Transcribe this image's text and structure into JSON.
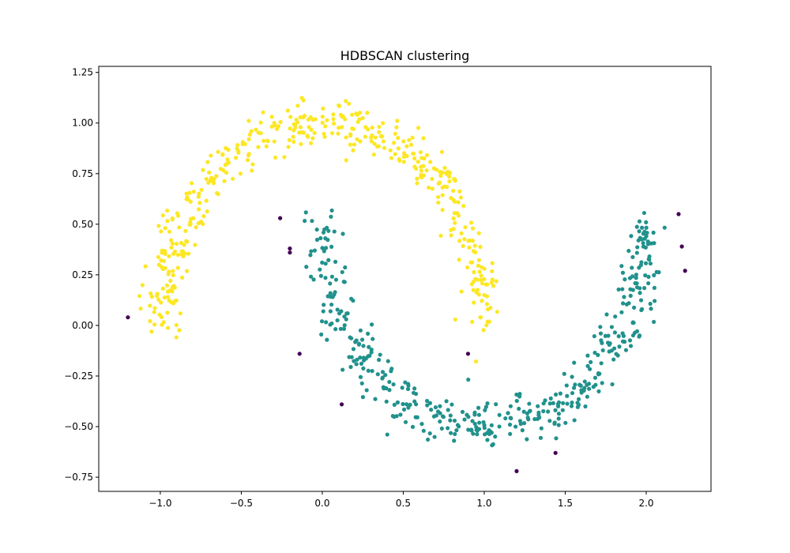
{
  "chart_data": {
    "type": "scatter",
    "title": "HDBSCAN clustering",
    "xlabel": "",
    "ylabel": "",
    "xlim": [
      -1.38,
      2.4
    ],
    "ylim": [
      -0.82,
      1.28
    ],
    "xticks": [
      -1.0,
      -0.5,
      0.0,
      0.5,
      1.0,
      1.5,
      2.0
    ],
    "xtick_labels": [
      "−1.0",
      "−0.5",
      "0.0",
      "0.5",
      "1.0",
      "1.5",
      "2.0"
    ],
    "yticks": [
      -0.75,
      -0.5,
      -0.25,
      0.0,
      0.25,
      0.5,
      0.75,
      1.0,
      1.25
    ],
    "ytick_labels": [
      "−0.75",
      "−0.50",
      "−0.25",
      "0.00",
      "0.25",
      "0.50",
      "0.75",
      "1.00",
      "1.25"
    ],
    "grid": false,
    "legend": "none",
    "clusters": [
      {
        "label": 0,
        "color": "#21918c",
        "shape": "lower-moon",
        "count": 440,
        "noise": 0.06
      },
      {
        "label": 1,
        "color": "#fde725",
        "shape": "upper-moon",
        "count": 440,
        "noise": 0.06
      }
    ],
    "noise_points": {
      "color": "#440154",
      "points": [
        [
          -1.2,
          0.04
        ],
        [
          -0.26,
          0.53
        ],
        [
          -0.2,
          0.36
        ],
        [
          -0.14,
          -0.14
        ],
        [
          0.12,
          -0.39
        ],
        [
          0.9,
          -0.14
        ],
        [
          1.2,
          -0.72
        ],
        [
          1.44,
          -0.63
        ],
        [
          2.2,
          0.55
        ],
        [
          2.22,
          0.39
        ],
        [
          2.24,
          0.27
        ],
        [
          -0.2,
          0.38
        ]
      ]
    }
  }
}
